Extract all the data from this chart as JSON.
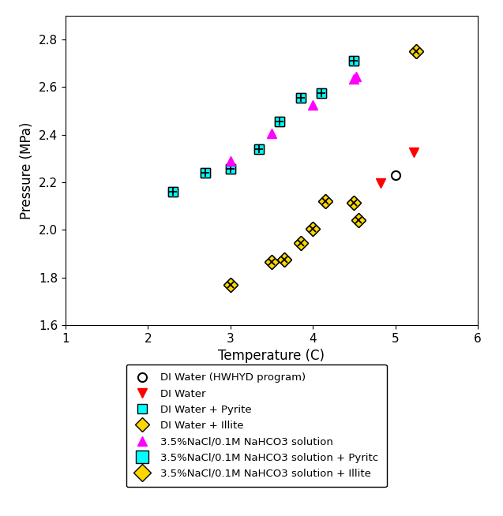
{
  "series": {
    "di_water_hwhyd": {
      "label": "DI Water (HWHYD program)",
      "T": [
        5.0
      ],
      "P": [
        2.23
      ],
      "marker": "o",
      "color": "none",
      "edgecolor": "black",
      "markersize": 8,
      "zorder": 6
    },
    "di_water": {
      "label": "DI Water",
      "T": [
        4.82,
        5.22
      ],
      "P": [
        2.195,
        2.325
      ],
      "marker": "v",
      "color": "red",
      "edgecolor": "red",
      "markersize": 9,
      "zorder": 6
    },
    "di_water_pyrite": {
      "label": "DI Water + Pyrite",
      "T": [
        2.3,
        2.7,
        3.0,
        3.35,
        3.6,
        3.85,
        4.1,
        4.5
      ],
      "P": [
        2.16,
        2.24,
        2.255,
        2.34,
        2.455,
        2.555,
        2.575,
        2.71
      ],
      "marker": "s",
      "color": "cyan",
      "edgecolor": "black",
      "markersize": 9,
      "zorder": 4
    },
    "di_water_illite": {
      "label": "DI Water + Illite",
      "T": [
        3.0,
        3.5,
        3.65,
        3.85,
        4.0,
        4.15,
        4.5,
        4.55,
        5.25
      ],
      "P": [
        1.77,
        1.865,
        1.875,
        1.945,
        2.005,
        2.12,
        2.115,
        2.04,
        2.75
      ],
      "marker": "D",
      "color": "gold",
      "edgecolor": "black",
      "markersize": 9,
      "zorder": 4
    },
    "nacl_nahco3": {
      "label": "3.5%NaCl/0.1M NaHCO3 solution",
      "T": [
        3.0,
        3.5,
        4.0,
        4.5,
        4.52
      ],
      "P": [
        2.29,
        2.405,
        2.525,
        2.635,
        2.645
      ],
      "marker": "^",
      "color": "magenta",
      "edgecolor": "magenta",
      "markersize": 9,
      "zorder": 5
    },
    "nacl_nahco3_pyrite": {
      "label": "3.5%NaCl/0.1M NaHCO3 solution + Pyritc",
      "T": [
        2.3,
        2.7,
        3.0,
        3.35,
        3.6,
        3.85,
        4.1,
        4.5
      ],
      "P": [
        2.16,
        2.24,
        2.255,
        2.34,
        2.455,
        2.555,
        2.575,
        2.71
      ],
      "marker": "s",
      "color": "cyan",
      "edgecolor": "black",
      "markersize": 9,
      "zorder": 3
    },
    "nacl_nahco3_illite": {
      "label": "3.5%NaCl/0.1M NaHCO3 solution + Illite",
      "T": [
        3.0,
        3.5,
        3.65,
        3.85,
        4.0,
        4.15,
        4.5,
        4.55,
        5.25
      ],
      "P": [
        1.77,
        1.865,
        1.875,
        1.945,
        2.005,
        2.12,
        2.115,
        2.04,
        2.75
      ],
      "marker": "D",
      "color": "gold",
      "edgecolor": "black",
      "markersize": 9,
      "zorder": 3
    }
  },
  "xlabel": "Temperature (C)",
  "ylabel": "Pressure (MPa)",
  "xlim": [
    1,
    6
  ],
  "ylim": [
    1.6,
    2.9
  ],
  "xticks": [
    1,
    2,
    3,
    4,
    5,
    6
  ],
  "yticks": [
    1.6,
    1.8,
    2.0,
    2.2,
    2.4,
    2.6,
    2.8
  ],
  "figsize": [
    6.37,
    6.54
  ],
  "dpi": 100
}
